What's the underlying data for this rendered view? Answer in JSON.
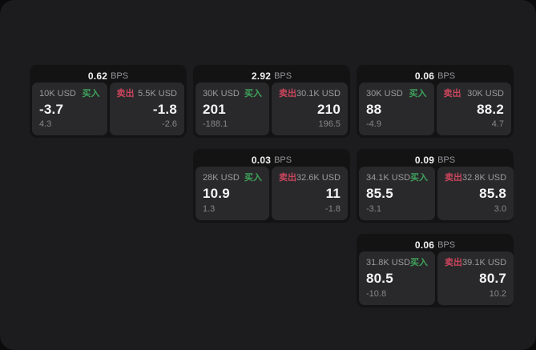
{
  "labels": {
    "bps": "BPS",
    "buy": "买入",
    "sell": "卖出"
  },
  "colors": {
    "panel_bg": "#1c1c1e",
    "card_bg": "#131314",
    "pane_bg": "#29292b",
    "buy_accent": "#3fa25c",
    "sell_accent": "#c9455c"
  },
  "cards": [
    {
      "bps": "0.62",
      "buy": {
        "amount": "10K USD",
        "price": "-3.7",
        "delta": "4.3"
      },
      "sell": {
        "amount": "5.5K USD",
        "price": "-1.8",
        "delta": "-2.6"
      }
    },
    {
      "bps": "2.92",
      "buy": {
        "amount": "30K USD",
        "price": "201",
        "delta": "-188.1"
      },
      "sell": {
        "amount": "30.1K USD",
        "price": "210",
        "delta": "196.5"
      }
    },
    {
      "bps": "0.06",
      "buy": {
        "amount": "30K USD",
        "price": "88",
        "delta": "-4.9"
      },
      "sell": {
        "amount": "30K USD",
        "price": "88.2",
        "delta": "4.7"
      }
    },
    {
      "bps": "0.03",
      "buy": {
        "amount": "28K USD",
        "price": "10.9",
        "delta": "1.3"
      },
      "sell": {
        "amount": "32.6K USD",
        "price": "11",
        "delta": "-1.8"
      }
    },
    {
      "bps": "0.09",
      "buy": {
        "amount": "34.1K USD",
        "price": "85.5",
        "delta": "-3.1"
      },
      "sell": {
        "amount": "32.8K USD",
        "price": "85.8",
        "delta": "3.0"
      }
    },
    {
      "bps": "0.06",
      "buy": {
        "amount": "31.8K USD",
        "price": "80.5",
        "delta": "-10.8"
      },
      "sell": {
        "amount": "39.1K USD",
        "price": "80.7",
        "delta": "10.2"
      }
    }
  ]
}
